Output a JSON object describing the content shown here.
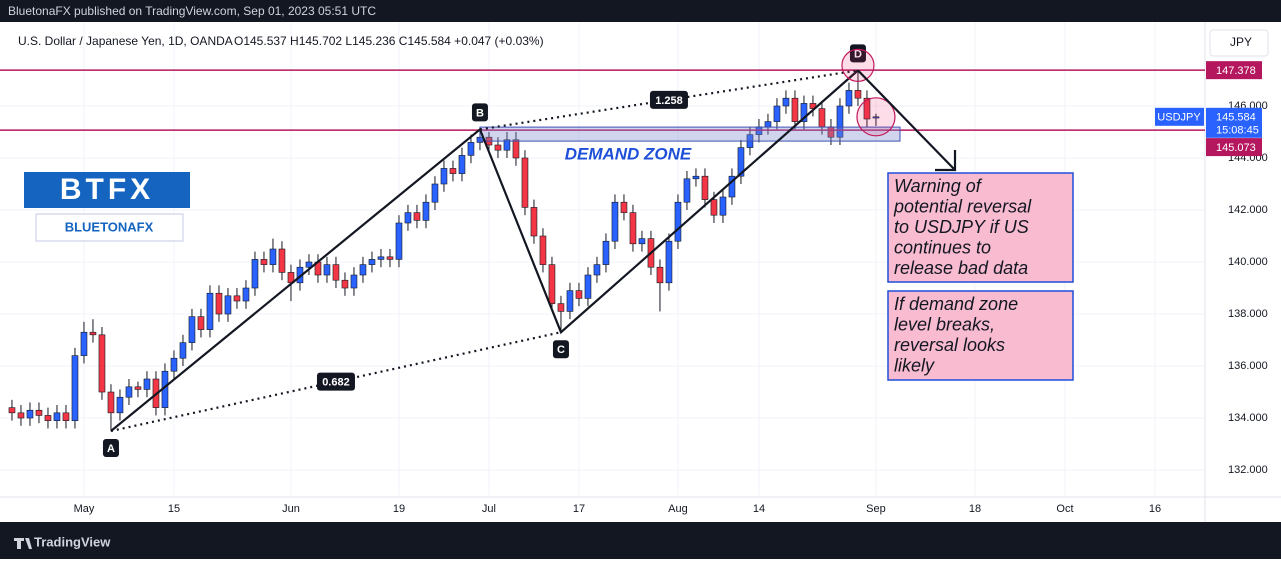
{
  "header": {
    "published": "BluetonaFX published on TradingView.com, Sep 01, 2023 05:51 UTC",
    "symbol": "U.S. Dollar / Japanese Yen, 1D, OANDA",
    "ohlc": "O145.537  H145.702  L145.236  C145.584  +0.047 (+0.03%)",
    "currency": "JPY"
  },
  "chart_data": {
    "type": "candlestick",
    "up_color": "#2962ff",
    "down_color": "#f23645",
    "grid": true,
    "xlim": [
      -1.33,
      132.56
    ],
    "ylim": [
      131.04,
      149.23
    ],
    "xticks": [
      {
        "value": 8,
        "label": "May"
      },
      {
        "value": 18,
        "label": "15"
      },
      {
        "value": 31,
        "label": "Jun"
      },
      {
        "value": 43,
        "label": "19"
      },
      {
        "value": 53,
        "label": "Jul"
      },
      {
        "value": 63,
        "label": "17"
      },
      {
        "value": 74,
        "label": "Aug"
      },
      {
        "value": 83,
        "label": "14"
      },
      {
        "value": 96,
        "label": "Sep"
      },
      {
        "value": 107,
        "label": "18"
      },
      {
        "value": 117,
        "label": "Oct"
      },
      {
        "value": 127,
        "label": "16"
      }
    ],
    "yticks": [
      {
        "value": 132,
        "label": "132.000"
      },
      {
        "value": 134,
        "label": "134.000"
      },
      {
        "value": 136,
        "label": "136.000"
      },
      {
        "value": 138,
        "label": "138.000"
      },
      {
        "value": 140,
        "label": "140.000"
      },
      {
        "value": 142,
        "label": "142.000"
      },
      {
        "value": 144,
        "label": "144.000"
      },
      {
        "value": 146,
        "label": "146.000"
      }
    ],
    "open": [
      134.4,
      134.2,
      134.0,
      134.3,
      134.1,
      133.9,
      134.2,
      133.9,
      136.4,
      137.3,
      137.2,
      135.0,
      134.2,
      134.8,
      135.2,
      135.1,
      135.5,
      134.4,
      135.8,
      136.3,
      136.9,
      137.9,
      137.4,
      138.8,
      138.0,
      138.7,
      138.5,
      139.0,
      140.1,
      139.9,
      140.5,
      139.6,
      139.2,
      139.8,
      140.0,
      139.5,
      139.9,
      139.3,
      139.0,
      139.5,
      139.9,
      140.1,
      140.2,
      140.1,
      141.5,
      141.9,
      141.6,
      142.3,
      143.0,
      143.6,
      143.4,
      144.1,
      144.6,
      144.8,
      144.5,
      144.3,
      144.7,
      144.0,
      142.1,
      141.0,
      139.9,
      138.4,
      138.1,
      138.9,
      138.6,
      139.5,
      139.9,
      140.8,
      142.3,
      141.9,
      140.7,
      140.9,
      139.8,
      139.2,
      140.8,
      142.3,
      143.2,
      143.3,
      142.4,
      141.8,
      142.5,
      143.3,
      144.4,
      144.9,
      145.2,
      145.4,
      146.0,
      146.3,
      145.4,
      146.1,
      145.9,
      145.2,
      144.8,
      146.0,
      146.6,
      146.3,
      145.537
    ],
    "high": [
      134.7,
      134.5,
      134.6,
      134.6,
      134.4,
      134.5,
      134.5,
      136.7,
      137.7,
      137.8,
      137.5,
      135.3,
      135.1,
      135.5,
      135.4,
      135.8,
      135.8,
      136.1,
      136.6,
      137.2,
      138.2,
      138.2,
      139.1,
      139.1,
      139.0,
      139.0,
      139.3,
      140.4,
      140.4,
      140.9,
      140.8,
      139.9,
      140.1,
      140.3,
      140.3,
      140.2,
      140.2,
      139.6,
      139.8,
      140.2,
      140.4,
      140.5,
      140.5,
      141.8,
      142.2,
      142.2,
      142.6,
      143.3,
      143.9,
      143.9,
      144.4,
      144.9,
      145.1,
      145.0,
      144.8,
      145.0,
      145.0,
      144.3,
      142.4,
      141.3,
      140.2,
      138.7,
      139.2,
      139.2,
      139.8,
      140.2,
      141.1,
      142.6,
      142.6,
      142.2,
      141.2,
      141.2,
      140.1,
      141.1,
      142.6,
      143.5,
      143.6,
      143.6,
      142.7,
      142.8,
      143.6,
      144.7,
      145.2,
      145.5,
      145.7,
      146.3,
      146.6,
      146.6,
      146.4,
      146.4,
      146.2,
      145.5,
      146.3,
      146.9,
      147.37,
      146.6,
      145.702
    ],
    "low": [
      133.9,
      133.7,
      133.7,
      133.8,
      133.6,
      133.6,
      133.6,
      133.6,
      136.1,
      136.9,
      134.7,
      133.5,
      133.9,
      134.5,
      134.8,
      134.8,
      134.1,
      134.1,
      135.5,
      136.0,
      136.6,
      137.1,
      137.1,
      137.7,
      137.7,
      138.2,
      138.2,
      138.7,
      139.6,
      139.6,
      139.3,
      138.5,
      138.9,
      139.5,
      139.2,
      139.2,
      139.0,
      138.7,
      138.7,
      139.2,
      139.6,
      139.8,
      139.8,
      139.8,
      141.2,
      141.3,
      141.3,
      142.0,
      142.7,
      143.1,
      143.1,
      143.8,
      144.3,
      144.2,
      144.0,
      144.0,
      143.7,
      141.8,
      140.7,
      139.6,
      138.1,
      137.3,
      137.8,
      138.3,
      138.3,
      139.2,
      139.6,
      140.5,
      141.6,
      140.4,
      140.4,
      139.5,
      138.1,
      138.9,
      140.5,
      142.0,
      142.9,
      142.1,
      141.5,
      141.5,
      142.2,
      143.0,
      144.1,
      144.6,
      144.9,
      145.1,
      145.7,
      145.1,
      145.1,
      145.6,
      144.9,
      144.5,
      144.5,
      145.7,
      146.0,
      145.2,
      145.236
    ],
    "close": [
      134.2,
      134.0,
      134.3,
      134.1,
      133.9,
      134.2,
      133.9,
      136.4,
      137.3,
      137.2,
      135.0,
      134.2,
      134.8,
      135.2,
      135.1,
      135.5,
      134.4,
      135.8,
      136.3,
      136.9,
      137.9,
      137.4,
      138.8,
      138.0,
      138.7,
      138.5,
      139.0,
      140.1,
      139.9,
      140.5,
      139.6,
      139.2,
      139.8,
      140.0,
      139.5,
      139.9,
      139.3,
      139.0,
      139.5,
      139.9,
      140.1,
      140.2,
      140.1,
      141.5,
      141.9,
      141.6,
      142.3,
      143.0,
      143.6,
      143.4,
      144.1,
      144.6,
      144.8,
      144.5,
      144.3,
      144.7,
      144.0,
      142.1,
      141.0,
      139.9,
      138.4,
      138.1,
      138.9,
      138.6,
      139.5,
      139.9,
      140.8,
      142.3,
      141.9,
      140.7,
      140.9,
      139.8,
      139.2,
      140.8,
      142.3,
      143.2,
      143.3,
      142.4,
      141.8,
      142.5,
      143.3,
      144.4,
      144.9,
      145.2,
      145.4,
      146.0,
      146.3,
      145.4,
      146.1,
      145.9,
      145.2,
      144.8,
      146.0,
      146.6,
      146.3,
      145.5,
      145.584
    ],
    "last_price": {
      "symbol": "USDJPY",
      "countdown": "15:08:45",
      "color": "#2962ff"
    }
  },
  "annotations": {
    "hlines": [
      {
        "value": 147.378,
        "color": "#b5175f"
      },
      {
        "value": 145.073,
        "color": "#b5175f"
      }
    ],
    "pattern_labels": [
      "A",
      "B",
      "C",
      "D"
    ],
    "ratios": [
      0.682,
      1.258
    ],
    "zone_label": "DEMAND ZONE",
    "notes": [
      {
        "lines": [
          "Warning of",
          "potential reversal",
          "to USDJPY if US",
          "continues to",
          "release bad data"
        ]
      },
      {
        "lines": [
          "If demand zone",
          "level breaks,",
          "reversal looks",
          "likely"
        ]
      }
    ],
    "logo": {
      "main": "BTFX",
      "sub": "BLUETONAFX"
    }
  },
  "footer": {
    "brand": "TradingView"
  }
}
